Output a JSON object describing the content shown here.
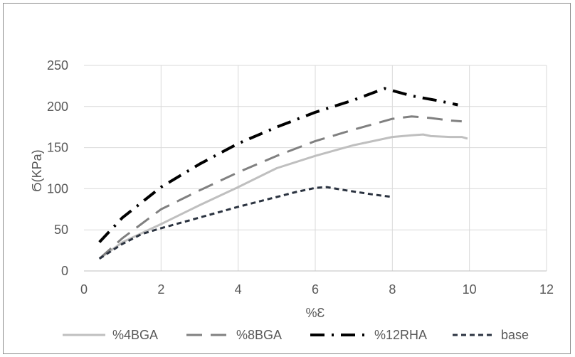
{
  "chart_data": {
    "type": "line",
    "title": "",
    "xlabel": "%Ɛ",
    "ylabel": "Ϭ(KPa)",
    "xlim": [
      0,
      12
    ],
    "ylim": [
      0,
      250
    ],
    "x_ticks": [
      "0",
      "2",
      "4",
      "6",
      "8",
      "10",
      "12"
    ],
    "y_ticks": [
      "0",
      "50",
      "100",
      "150",
      "200",
      "250"
    ],
    "grid": true,
    "legend_position": "bottom",
    "series": [
      {
        "name": "%4BGA",
        "color": "#bfbfbf",
        "dash": "solid",
        "points": [
          [
            0.4,
            15
          ],
          [
            1,
            35
          ],
          [
            2,
            57
          ],
          [
            3,
            80
          ],
          [
            4,
            102
          ],
          [
            5,
            125
          ],
          [
            6,
            140
          ],
          [
            7,
            153
          ],
          [
            7.5,
            158
          ],
          [
            8,
            163
          ],
          [
            8.5,
            165
          ],
          [
            8.8,
            166
          ],
          [
            9,
            164
          ],
          [
            9.5,
            163
          ],
          [
            9.8,
            163
          ],
          [
            9.95,
            161
          ]
        ]
      },
      {
        "name": "%8BGA",
        "color": "#808080",
        "dash": "long-dash",
        "points": [
          [
            0.4,
            15
          ],
          [
            1,
            40
          ],
          [
            2,
            75
          ],
          [
            3,
            98
          ],
          [
            4,
            120
          ],
          [
            5,
            140
          ],
          [
            6,
            158
          ],
          [
            7,
            172
          ],
          [
            8,
            185
          ],
          [
            8.5,
            188
          ],
          [
            9,
            186
          ],
          [
            9.5,
            183
          ],
          [
            9.8,
            182
          ]
        ]
      },
      {
        "name": "%12RHA",
        "color": "#000000",
        "dash": "dash-dot",
        "points": [
          [
            0.4,
            35
          ],
          [
            1,
            65
          ],
          [
            2,
            102
          ],
          [
            3,
            130
          ],
          [
            4,
            155
          ],
          [
            5,
            175
          ],
          [
            6,
            193
          ],
          [
            7,
            208
          ],
          [
            7.8,
            222
          ],
          [
            8.5,
            213
          ],
          [
            9.2,
            207
          ],
          [
            9.7,
            202
          ]
        ]
      },
      {
        "name": "base",
        "color": "#2b3340",
        "dash": "short-dash",
        "points": [
          [
            0.4,
            15
          ],
          [
            1,
            33
          ],
          [
            1.5,
            45
          ],
          [
            2,
            52
          ],
          [
            3,
            65
          ],
          [
            4,
            78
          ],
          [
            5,
            90
          ],
          [
            5.5,
            96
          ],
          [
            6,
            101
          ],
          [
            6.3,
            102
          ],
          [
            6.8,
            98
          ],
          [
            7.5,
            93
          ],
          [
            8,
            90
          ]
        ]
      }
    ]
  }
}
